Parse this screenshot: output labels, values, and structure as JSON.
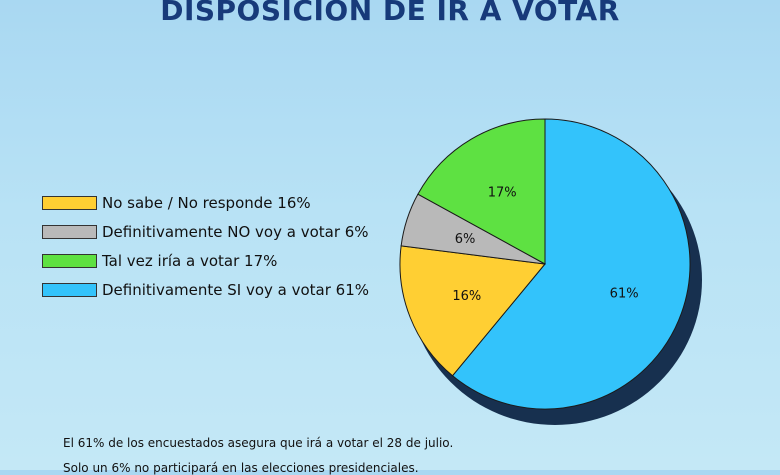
{
  "title": "DISPOSICIÓN DE IR A VOTAR",
  "chart_data": {
    "type": "pie",
    "slices": [
      {
        "label": "No sabe / No responde 16%",
        "value": 16,
        "display": "16%",
        "color": "#ffcf33"
      },
      {
        "label": "Definitivamente NO voy a votar 6%",
        "value": 6,
        "display": "6%",
        "color": "#b9b9b9"
      },
      {
        "label": "Tal vez iría a votar 17%",
        "value": 17,
        "display": "17%",
        "color": "#5ee142"
      },
      {
        "label": "Definitivamente SI voy a votar 61%",
        "value": 61,
        "display": "61%",
        "color": "#33c3fb"
      }
    ],
    "legend_position": "left"
  },
  "footnotes": [
    "El 61% de los encuestados asegura que irá a votar el 28 de julio.",
    "Solo un 6% no participará en las elecciones presidenciales."
  ]
}
